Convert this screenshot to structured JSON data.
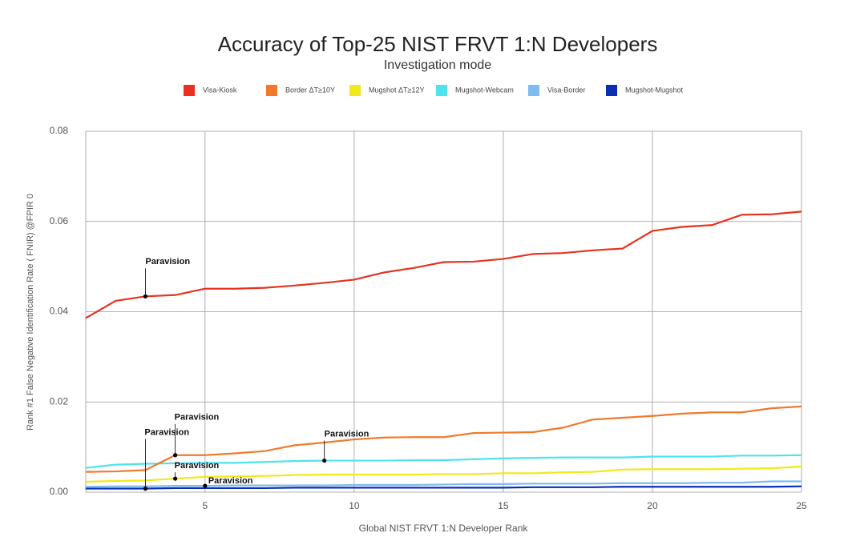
{
  "chart_data": {
    "type": "line",
    "title": "Accuracy of Top-25 NIST FRVT 1:N Developers",
    "subtitle": "Investigation mode",
    "x_label": "Global NIST FRVT 1:N Developer Rank",
    "y_label": "Rank #1 False Negative Identification Rate ( FNIR) @FPIR 0",
    "x": [
      1,
      2,
      3,
      4,
      5,
      6,
      7,
      8,
      9,
      10,
      11,
      12,
      13,
      14,
      15,
      16,
      17,
      18,
      19,
      20,
      21,
      22,
      23,
      24,
      25
    ],
    "xlim": [
      1,
      25
    ],
    "xticks": [
      5,
      10,
      15,
      20,
      25
    ],
    "ylim": [
      0,
      0.08
    ],
    "yticks": [
      {
        "value": 0,
        "label": "0.00"
      },
      {
        "value": 0.02,
        "label": "0.02"
      },
      {
        "value": 0.04,
        "label": "0.04"
      },
      {
        "value": 0.06,
        "label": "0.06"
      },
      {
        "value": 0.08,
        "label": "0.08"
      }
    ],
    "grid": true,
    "series": [
      {
        "name": "Visa-Kiosk",
        "color": "#e8321f",
        "values": [
          0.0386,
          0.0424,
          0.0434,
          0.0437,
          0.0451,
          0.0451,
          0.0453,
          0.0458,
          0.0464,
          0.0471,
          0.0487,
          0.0497,
          0.051,
          0.0511,
          0.0517,
          0.0528,
          0.053,
          0.0536,
          0.054,
          0.0579,
          0.0588,
          0.0592,
          0.0615,
          0.0616,
          0.0622
        ]
      },
      {
        "name": "Border ΔT≥10Y",
        "color": "#f07a2a",
        "values": [
          0.0045,
          0.0046,
          0.0049,
          0.0082,
          0.0082,
          0.0086,
          0.0091,
          0.0104,
          0.011,
          0.0117,
          0.0121,
          0.0122,
          0.0122,
          0.0131,
          0.0132,
          0.0133,
          0.0143,
          0.0161,
          0.0165,
          0.0169,
          0.0174,
          0.0177,
          0.0177,
          0.0186,
          0.019
        ]
      },
      {
        "name": "Mugshot ΔT≥12Y",
        "color": "#f2e81a",
        "values": [
          0.0023,
          0.0025,
          0.0026,
          0.003,
          0.0034,
          0.0035,
          0.0036,
          0.0038,
          0.0039,
          0.0039,
          0.0039,
          0.0039,
          0.004,
          0.004,
          0.0042,
          0.0042,
          0.0044,
          0.0045,
          0.005,
          0.0051,
          0.0051,
          0.0051,
          0.0052,
          0.0053,
          0.0057
        ]
      },
      {
        "name": "Mugshot-Webcam",
        "color": "#4de3ef",
        "values": [
          0.0054,
          0.0061,
          0.0063,
          0.0064,
          0.0065,
          0.0065,
          0.0067,
          0.0069,
          0.007,
          0.007,
          0.007,
          0.0071,
          0.0071,
          0.0073,
          0.0075,
          0.0076,
          0.0077,
          0.0077,
          0.0077,
          0.0079,
          0.0079,
          0.0079,
          0.0081,
          0.0081,
          0.0082
        ]
      },
      {
        "name": "Visa-Border",
        "color": "#7fbaf0",
        "values": [
          0.0012,
          0.0013,
          0.0013,
          0.0014,
          0.0014,
          0.0015,
          0.0015,
          0.0015,
          0.0015,
          0.0016,
          0.0016,
          0.0016,
          0.0017,
          0.0018,
          0.0018,
          0.0019,
          0.0019,
          0.0019,
          0.002,
          0.002,
          0.002,
          0.0021,
          0.0021,
          0.0024,
          0.0024
        ]
      },
      {
        "name": "Mugshot-Mugshot",
        "color": "#0a2fb3",
        "values": [
          0.0008,
          0.0008,
          0.0008,
          0.0009,
          0.0009,
          0.0009,
          0.0009,
          0.001,
          0.001,
          0.001,
          0.001,
          0.001,
          0.001,
          0.001,
          0.001,
          0.0011,
          0.0011,
          0.0011,
          0.0012,
          0.0012,
          0.0012,
          0.0012,
          0.0012,
          0.0012,
          0.0013
        ]
      }
    ],
    "annotations": [
      {
        "text": "Paravision",
        "x": 3,
        "y": 0.0434
      },
      {
        "text": "Paravision",
        "x": 4,
        "y": 0.0082
      },
      {
        "text": "Paravision",
        "x": 9,
        "y": 0.007
      },
      {
        "text": "Paravision",
        "x": 4,
        "y": 0.003
      },
      {
        "text": "Paravision",
        "x": 3,
        "y": 0.0008
      },
      {
        "text": "Paravision",
        "x": 5,
        "y": 0.0014
      }
    ]
  }
}
